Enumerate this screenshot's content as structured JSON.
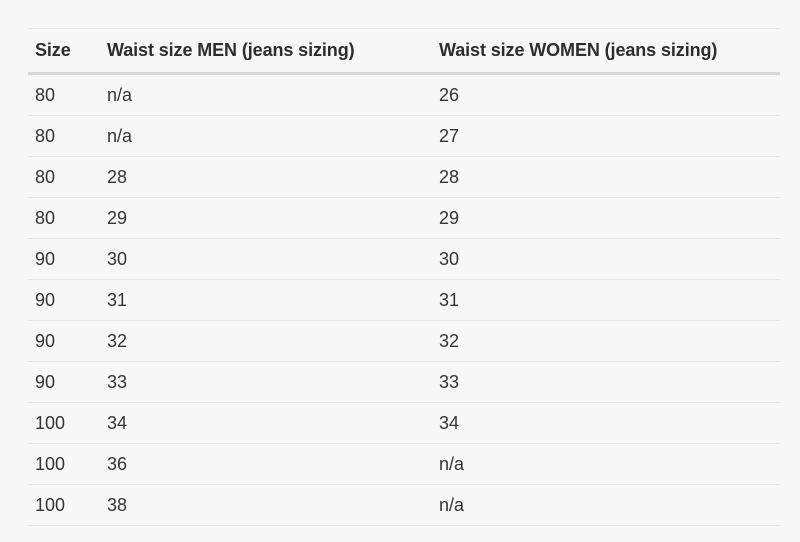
{
  "table": {
    "columns": [
      "Size",
      "Waist size MEN (jeans sizing)",
      "Waist size WOMEN (jeans sizing)"
    ],
    "rows": [
      [
        "80",
        "n/a",
        "26"
      ],
      [
        "80",
        "n/a",
        "27"
      ],
      [
        "80",
        "28",
        "28"
      ],
      [
        "80",
        "29",
        "29"
      ],
      [
        "90",
        "30",
        "30"
      ],
      [
        "90",
        "31",
        "31"
      ],
      [
        "90",
        "32",
        "32"
      ],
      [
        "90",
        "33",
        "33"
      ],
      [
        "100",
        "34",
        "34"
      ],
      [
        "100",
        "36",
        "n/a"
      ],
      [
        "100",
        "38",
        "n/a"
      ]
    ]
  },
  "colors": {
    "page_background": "#f7f7f7",
    "text": "#343434",
    "header_text": "#2d2d2d",
    "row_border": "#e4e4e4",
    "header_border": "#d8d8d8"
  }
}
